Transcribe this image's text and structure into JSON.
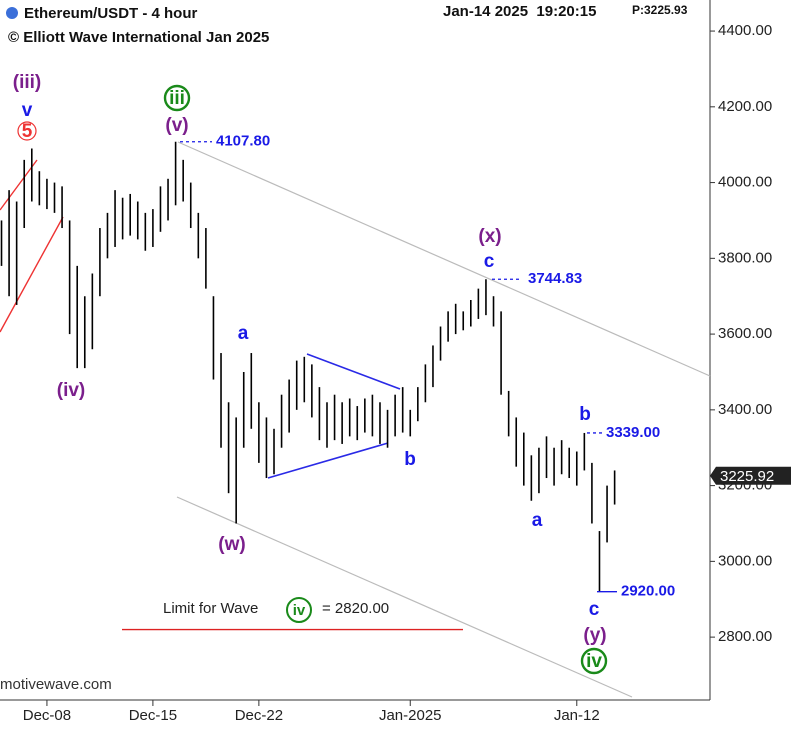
{
  "chart_data": {
    "type": "ohlc",
    "title": "Ethereum/USDT - 4 hour",
    "subtitle": "© Elliott Wave International Jan 2025",
    "timestamp": "Jan-14 2025  19:20:15",
    "last_price": "P:3225.93",
    "source": "motivewave.com",
    "color": "#000000",
    "x": [
      5.0,
      5.5,
      6.0,
      6.5,
      7.0,
      7.5,
      8.0,
      8.5,
      9.0,
      9.5,
      10.0,
      10.5,
      11.0,
      11.5,
      12.0,
      12.5,
      13.0,
      13.5,
      14.0,
      14.5,
      15.0,
      15.5,
      16.0,
      16.5,
      17.0,
      17.5,
      18.0,
      18.5,
      19.0,
      19.5,
      20.0,
      20.5,
      21.0,
      21.5,
      22.0,
      22.5,
      23.0,
      23.5,
      24.0,
      24.5,
      25.0,
      25.5,
      26.0,
      26.5,
      27.0,
      27.5,
      28.0,
      28.5,
      29.0,
      29.5,
      30.0,
      30.5,
      31.0,
      31.5,
      32.0,
      32.5,
      33.0,
      33.5,
      34.0,
      34.5,
      35.0,
      35.5,
      36.0,
      36.5,
      37.0,
      37.5,
      38.0,
      38.5,
      39.0,
      39.5,
      40.0,
      40.5,
      41.0,
      41.5,
      42.0,
      42.5,
      43.0,
      43.5,
      44.0,
      44.5,
      45.0,
      45.5
    ],
    "series": [
      {
        "name": "High",
        "values": [
          3900,
          3980,
          3950,
          4060,
          4090,
          4030,
          4010,
          4000,
          3990,
          3900,
          3780,
          3700,
          3760,
          3880,
          3920,
          3980,
          3960,
          3970,
          3950,
          3920,
          3930,
          3990,
          4010,
          4107.8,
          4060,
          4000,
          3920,
          3880,
          3700,
          3550,
          3420,
          3380,
          3500,
          3550,
          3420,
          3380,
          3350,
          3440,
          3480,
          3530,
          3540,
          3520,
          3460,
          3420,
          3440,
          3420,
          3430,
          3410,
          3430,
          3440,
          3420,
          3400,
          3440,
          3460,
          3400,
          3460,
          3520,
          3570,
          3620,
          3660,
          3680,
          3660,
          3690,
          3720,
          3744.83,
          3700,
          3660,
          3450,
          3380,
          3340,
          3280,
          3300,
          3330,
          3300,
          3320,
          3300,
          3290,
          3339,
          3260,
          3080,
          3200,
          3240
        ]
      },
      {
        "name": "Low",
        "values": [
          3780,
          3700,
          3677,
          3880,
          3950,
          3940,
          3930,
          3920,
          3880,
          3600,
          3510,
          3510,
          3560,
          3700,
          3800,
          3830,
          3850,
          3860,
          3850,
          3820,
          3830,
          3870,
          3900,
          3940,
          3950,
          3880,
          3800,
          3720,
          3480,
          3300,
          3180,
          3100,
          3300,
          3350,
          3260,
          3220,
          3230,
          3300,
          3340,
          3400,
          3420,
          3380,
          3320,
          3300,
          3320,
          3310,
          3330,
          3320,
          3340,
          3330,
          3310,
          3300,
          3330,
          3340,
          3330,
          3370,
          3420,
          3460,
          3530,
          3580,
          3600,
          3610,
          3620,
          3640,
          3650,
          3620,
          3440,
          3330,
          3250,
          3200,
          3160,
          3180,
          3220,
          3200,
          3230,
          3220,
          3200,
          3240,
          3100,
          2920,
          3050,
          3150
        ]
      }
    ],
    "xlim": [
      4.9,
      51.8
    ],
    "xticks": [
      {
        "value": 8,
        "label": "Dec-08"
      },
      {
        "value": 15,
        "label": "Dec-15"
      },
      {
        "value": 22,
        "label": "Dec-22"
      },
      {
        "value": 32,
        "label": "Jan-2025"
      },
      {
        "value": 43,
        "label": "Jan-12"
      }
    ],
    "ylim": [
      2634,
      4482
    ],
    "yticks": [
      {
        "value": 2800,
        "label": "2800.00"
      },
      {
        "value": 3000,
        "label": "3000.00"
      },
      {
        "value": 3200,
        "label": "3200.00"
      },
      {
        "value": 3400,
        "label": "3400.00"
      },
      {
        "value": 3600,
        "label": "3600.00"
      },
      {
        "value": 3800,
        "label": "3800.00"
      },
      {
        "value": 4000,
        "label": "4000.00"
      },
      {
        "value": 4200,
        "label": "4200.00"
      },
      {
        "value": 4400,
        "label": "4400.00"
      }
    ],
    "price_labels": [
      {
        "value": 4107.8,
        "label": "4107.80"
      },
      {
        "value": 3744.83,
        "label": "3744.83"
      },
      {
        "value": 3339,
        "label": "3339.00"
      },
      {
        "value": 2920,
        "label": "2920.00"
      }
    ],
    "current_price": {
      "value": 3225.92,
      "label": "3225.92"
    },
    "limit": {
      "value": 2820,
      "label": "= 2820.00",
      "text": "Limit for Wave",
      "wave": "iv"
    },
    "annotations": [
      "(iii)",
      "v",
      "5",
      "iii",
      "(v)",
      "(iv)",
      "a",
      "(w)",
      "b",
      "(x)",
      "c",
      "b",
      "a",
      "c",
      "(y)",
      "iv"
    ]
  }
}
